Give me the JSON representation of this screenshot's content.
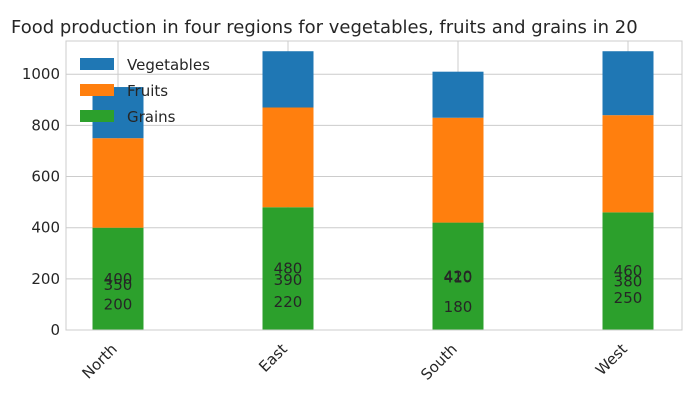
{
  "chart_data": {
    "type": "bar",
    "stacked": true,
    "title": "Food production in four regions for vegetables, fruits and grains in 20",
    "xlabel": "",
    "ylabel": "",
    "categories": [
      "North",
      "East",
      "South",
      "West"
    ],
    "yticks": [
      "0",
      "200",
      "400",
      "600",
      "800",
      "1000"
    ],
    "ylim": [
      0,
      1130
    ],
    "grid": true,
    "legend_placement": "top-left",
    "series": [
      {
        "name": "Grains",
        "values": [
          400,
          480,
          420,
          460
        ],
        "color": "#2ca02c"
      },
      {
        "name": "Fruits",
        "values": [
          350,
          390,
          410,
          380
        ],
        "color": "#ff7f0e"
      },
      {
        "name": "Vegetables",
        "values": [
          200,
          220,
          180,
          250
        ],
        "color": "#1f77b4"
      }
    ],
    "data_labels": [
      {
        "category": "North",
        "items": [
          "400",
          "350",
          "200"
        ]
      },
      {
        "category": "East",
        "items": [
          "480",
          "390",
          "220"
        ]
      },
      {
        "category": "South",
        "items": [
          "420",
          "410",
          "180"
        ]
      },
      {
        "category": "West",
        "items": [
          "460",
          "380",
          "250"
        ]
      }
    ],
    "legend": [
      "Vegetables",
      "Fruits",
      "Grains"
    ]
  }
}
